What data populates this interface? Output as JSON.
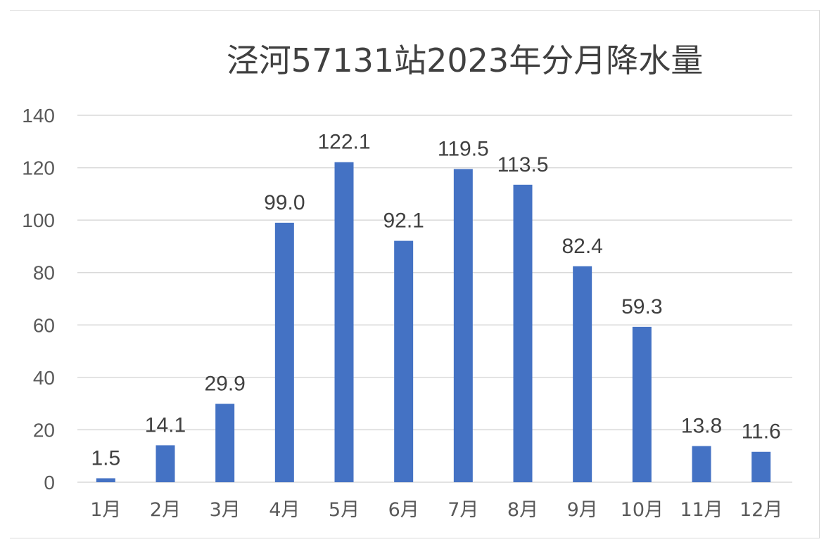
{
  "chart_data": {
    "type": "bar",
    "title": "泾河57131站2023年分月降水量",
    "categories": [
      "1月",
      "2月",
      "3月",
      "4月",
      "5月",
      "6月",
      "7月",
      "8月",
      "9月",
      "10月",
      "11月",
      "12月"
    ],
    "values": [
      1.5,
      14.1,
      29.9,
      99.0,
      122.1,
      92.1,
      119.5,
      113.5,
      82.4,
      59.3,
      13.8,
      11.6
    ],
    "data_labels": [
      "1.5",
      "14.1",
      "29.9",
      "99.0",
      "122.1",
      "92.1",
      "119.5",
      "113.5",
      "82.4",
      "59.3",
      "13.8",
      "11.6"
    ],
    "y_ticks": [
      "0",
      "20",
      "40",
      "60",
      "80",
      "100",
      "120",
      "140"
    ],
    "ylim": [
      0,
      140
    ],
    "xlabel": "",
    "ylabel": "",
    "grid": true,
    "legend": "none",
    "colors": {
      "bar": "#4472C4",
      "grid": "#d9d9d9",
      "text": "#595959",
      "title": "#404040"
    }
  }
}
